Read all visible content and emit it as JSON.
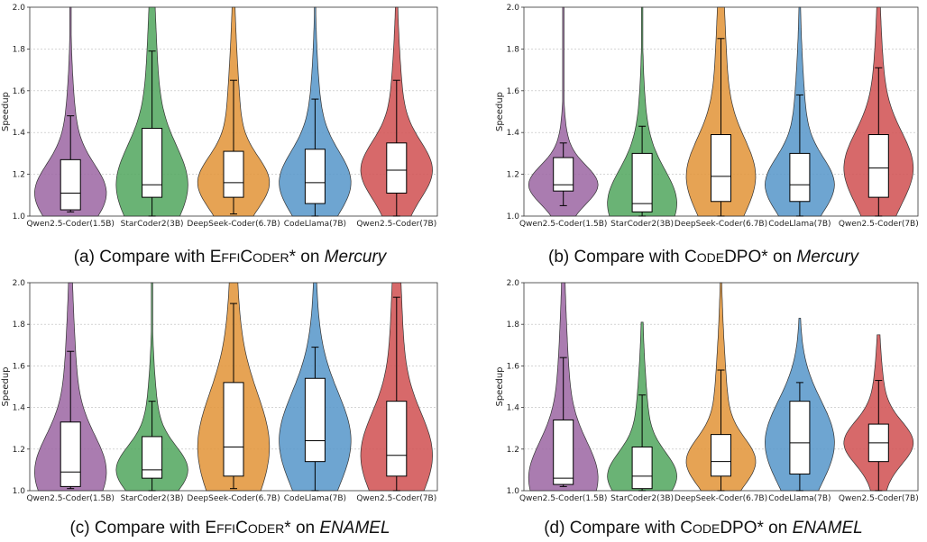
{
  "figure": {
    "captions": [
      {
        "label": "(a) Compare with ",
        "method_first": "E",
        "method_rest": "FFI",
        "method_first2": "C",
        "method_rest2": "ODER",
        "star": "*",
        "on": " on ",
        "dataset": "Mercury"
      },
      {
        "label": "(b) Compare with ",
        "method_first": "C",
        "method_rest": "ODE",
        "method_first2": "DPO",
        "method_rest2": "",
        "star": "*",
        "on": " on ",
        "dataset": "Mercury"
      },
      {
        "label": "(c) Compare with ",
        "method_first": "E",
        "method_rest": "FFI",
        "method_first2": "C",
        "method_rest2": "ODER",
        "star": "*",
        "on": " on ",
        "dataset": "ENAMEL"
      },
      {
        "label": "(d) Compare with ",
        "method_first": "C",
        "method_rest": "ODE",
        "method_first2": "DPO",
        "method_rest2": "",
        "star": "*",
        "on": " on ",
        "dataset": "ENAMEL"
      }
    ],
    "colors": [
      "#9e6aa5",
      "#55a862",
      "#e3963c",
      "#5a99cb",
      "#d15455"
    ]
  },
  "chart_data": [
    {
      "type": "violin",
      "ylabel": "Speedup",
      "ylim": [
        1.0,
        2.0
      ],
      "yticks": [
        "1.0",
        "1.2",
        "1.4",
        "1.6",
        "1.8",
        "2.0"
      ],
      "categories": [
        "Qwen2.5-Coder(1.5B)",
        "StarCoder2(3B)",
        "DeepSeek-Coder(6.7B)",
        "CodeLlama(7B)",
        "Qwen2.5-Coder(7B)"
      ],
      "violin_extent": [
        [
          1.0,
          2.0
        ],
        [
          1.0,
          2.0
        ],
        [
          1.0,
          2.0
        ],
        [
          1.0,
          2.0
        ],
        [
          1.0,
          2.0
        ]
      ],
      "boxes": [
        {
          "q1": 1.03,
          "median": 1.11,
          "q3": 1.27,
          "whisker_low": 1.02,
          "whisker_high": 1.48
        },
        {
          "q1": 1.09,
          "median": 1.15,
          "q3": 1.42,
          "whisker_low": 1.0,
          "whisker_high": 1.79
        },
        {
          "q1": 1.09,
          "median": 1.16,
          "q3": 1.31,
          "whisker_low": 1.01,
          "whisker_high": 1.65
        },
        {
          "q1": 1.06,
          "median": 1.16,
          "q3": 1.32,
          "whisker_low": 1.0,
          "whisker_high": 1.56
        },
        {
          "q1": 1.11,
          "median": 1.22,
          "q3": 1.35,
          "whisker_low": 1.0,
          "whisker_high": 1.65
        }
      ]
    },
    {
      "type": "violin",
      "ylabel": "Speedup",
      "ylim": [
        1.0,
        2.0
      ],
      "yticks": [
        "1.0",
        "1.2",
        "1.4",
        "1.6",
        "1.8",
        "2.0"
      ],
      "categories": [
        "Qwen2.5-Coder(1.5B)",
        "StarCoder2(3B)",
        "DeepSeek-Coder(6.7B)",
        "CodeLlama(7B)",
        "Qwen2.5-Coder(7B)"
      ],
      "violin_extent": [
        [
          1.0,
          2.0
        ],
        [
          1.0,
          2.0
        ],
        [
          1.0,
          2.0
        ],
        [
          1.0,
          2.0
        ],
        [
          1.0,
          2.0
        ]
      ],
      "boxes": [
        {
          "q1": 1.12,
          "median": 1.15,
          "q3": 1.28,
          "whisker_low": 1.05,
          "whisker_high": 1.35
        },
        {
          "q1": 1.02,
          "median": 1.06,
          "q3": 1.3,
          "whisker_low": 1.0,
          "whisker_high": 1.43
        },
        {
          "q1": 1.07,
          "median": 1.19,
          "q3": 1.39,
          "whisker_low": 1.0,
          "whisker_high": 1.85
        },
        {
          "q1": 1.07,
          "median": 1.15,
          "q3": 1.3,
          "whisker_low": 1.0,
          "whisker_high": 1.58
        },
        {
          "q1": 1.09,
          "median": 1.23,
          "q3": 1.39,
          "whisker_low": 1.0,
          "whisker_high": 1.71
        }
      ]
    },
    {
      "type": "violin",
      "ylabel": "Speedup",
      "ylim": [
        1.0,
        2.0
      ],
      "yticks": [
        "1.0",
        "1.2",
        "1.4",
        "1.6",
        "1.8",
        "2.0"
      ],
      "categories": [
        "Qwen2.5-Coder(1.5B)",
        "StarCoder2(3B)",
        "DeepSeek-Coder(6.7B)",
        "CodeLlama(7B)",
        "Qwen2.5-Coder(7B)"
      ],
      "violin_extent": [
        [
          1.0,
          2.0
        ],
        [
          1.0,
          2.0
        ],
        [
          1.0,
          2.0
        ],
        [
          1.0,
          2.0
        ],
        [
          1.0,
          2.0
        ]
      ],
      "boxes": [
        {
          "q1": 1.02,
          "median": 1.09,
          "q3": 1.33,
          "whisker_low": 1.01,
          "whisker_high": 1.67
        },
        {
          "q1": 1.06,
          "median": 1.1,
          "q3": 1.26,
          "whisker_low": 1.0,
          "whisker_high": 1.43
        },
        {
          "q1": 1.07,
          "median": 1.21,
          "q3": 1.52,
          "whisker_low": 1.01,
          "whisker_high": 1.9
        },
        {
          "q1": 1.14,
          "median": 1.24,
          "q3": 1.54,
          "whisker_low": 1.0,
          "whisker_high": 1.69
        },
        {
          "q1": 1.07,
          "median": 1.17,
          "q3": 1.43,
          "whisker_low": 1.0,
          "whisker_high": 1.93
        }
      ]
    },
    {
      "type": "violin",
      "ylabel": "Speedup",
      "ylim": [
        1.0,
        2.0
      ],
      "yticks": [
        "1.0",
        "1.2",
        "1.4",
        "1.6",
        "1.8",
        "2.0"
      ],
      "categories": [
        "Qwen2.5-Coder(1.5B)",
        "StarCoder2(3B)",
        "DeepSeek-Coder(6.7B)",
        "CodeLlama(7B)",
        "Qwen2.5-Coder(7B)"
      ],
      "violin_extent": [
        [
          1.0,
          2.0
        ],
        [
          1.0,
          1.81
        ],
        [
          1.0,
          2.0
        ],
        [
          1.0,
          1.83
        ],
        [
          1.0,
          1.75
        ]
      ],
      "boxes": [
        {
          "q1": 1.03,
          "median": 1.06,
          "q3": 1.34,
          "whisker_low": 1.02,
          "whisker_high": 1.64
        },
        {
          "q1": 1.01,
          "median": 1.07,
          "q3": 1.21,
          "whisker_low": 1.0,
          "whisker_high": 1.46
        },
        {
          "q1": 1.07,
          "median": 1.14,
          "q3": 1.27,
          "whisker_low": 1.0,
          "whisker_high": 1.58
        },
        {
          "q1": 1.08,
          "median": 1.23,
          "q3": 1.43,
          "whisker_low": 1.0,
          "whisker_high": 1.52
        },
        {
          "q1": 1.14,
          "median": 1.23,
          "q3": 1.32,
          "whisker_low": 1.0,
          "whisker_high": 1.53
        }
      ]
    }
  ]
}
